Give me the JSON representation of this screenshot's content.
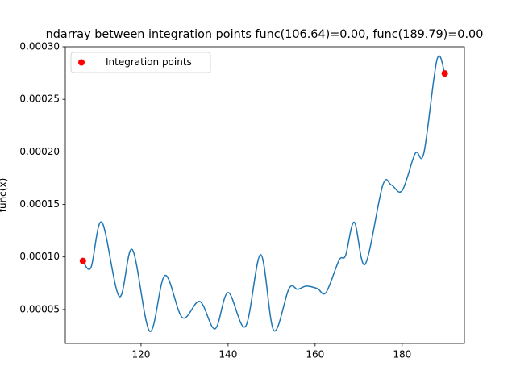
{
  "chart_data": {
    "type": "line",
    "title": "ndarray between integration points func(106.64)=0.00, func(189.79)=0.00",
    "ylabel": "func(x)",
    "xlim": [
      102.6,
      194.3
    ],
    "ylim": [
      1.77e-05,
      0.0003
    ],
    "xticks": [
      120,
      140,
      160,
      180
    ],
    "yticks": [
      {
        "value": 5e-05,
        "label": "0.00005"
      },
      {
        "value": 0.0001,
        "label": "0.00010"
      },
      {
        "value": 0.00015,
        "label": "0.00015"
      },
      {
        "value": 0.0002,
        "label": "0.00020"
      },
      {
        "value": 0.00025,
        "label": "0.00025"
      },
      {
        "value": 0.0003,
        "label": "0.00030"
      }
    ],
    "legend": "upper left",
    "series": [
      {
        "type": "line",
        "color": "#1f77b4",
        "x": [
          106.64,
          108.5,
          111,
          115,
          118,
          122,
          125.5,
          129.5,
          133.5,
          137,
          140,
          144,
          147.5,
          150.5,
          154,
          156,
          158,
          160.5,
          162.5,
          165.5,
          167,
          169,
          171.5,
          175.5,
          177.5,
          180,
          183,
          185,
          188,
          189.79
        ],
        "values": [
          9.62e-05,
          9e-05,
          0.0001331,
          6.24e-05,
          0.000107,
          2.93e-05,
          8.24e-05,
          4.23e-05,
          5.77e-05,
          3.16e-05,
          6.62e-05,
          3.39e-05,
          0.0001023,
          3e-05,
          7e-05,
          6.92e-05,
          7.23e-05,
          7e-05,
          6.62e-05,
          9.69e-05,
          0.0001015,
          0.0001331,
          9.31e-05,
          0.0001677,
          0.0001685,
          0.0001631,
          0.0001985,
          0.0001992,
          0.0002877,
          0.0002746
        ]
      },
      {
        "type": "scatter",
        "name": "Integration points",
        "color": "#ff0000",
        "x": [
          106.64,
          189.79
        ],
        "values": [
          9.62e-05,
          0.0002746
        ]
      }
    ]
  }
}
